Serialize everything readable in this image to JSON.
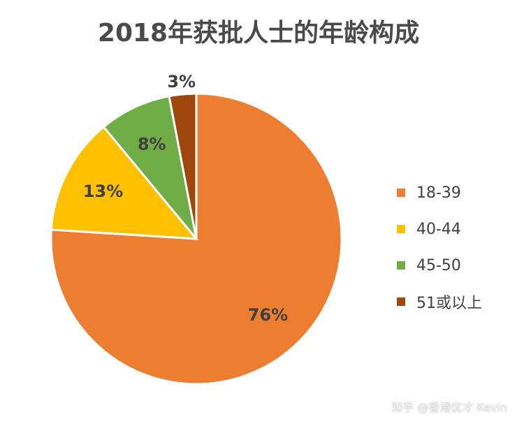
{
  "chart_data": {
    "type": "pie",
    "title": "2018年获批人士的年龄构成",
    "categories": [
      "18-39",
      "40-44",
      "45-50",
      "51或以上"
    ],
    "values": [
      76,
      13,
      8,
      3
    ],
    "labels": [
      "76%",
      "13%",
      "8%",
      "3%"
    ],
    "colors": [
      "#ED7D31",
      "#FFC000",
      "#70AD47",
      "#9E480E"
    ],
    "legend_position": "right"
  },
  "watermark": "知乎 @香港优才 Kevin"
}
